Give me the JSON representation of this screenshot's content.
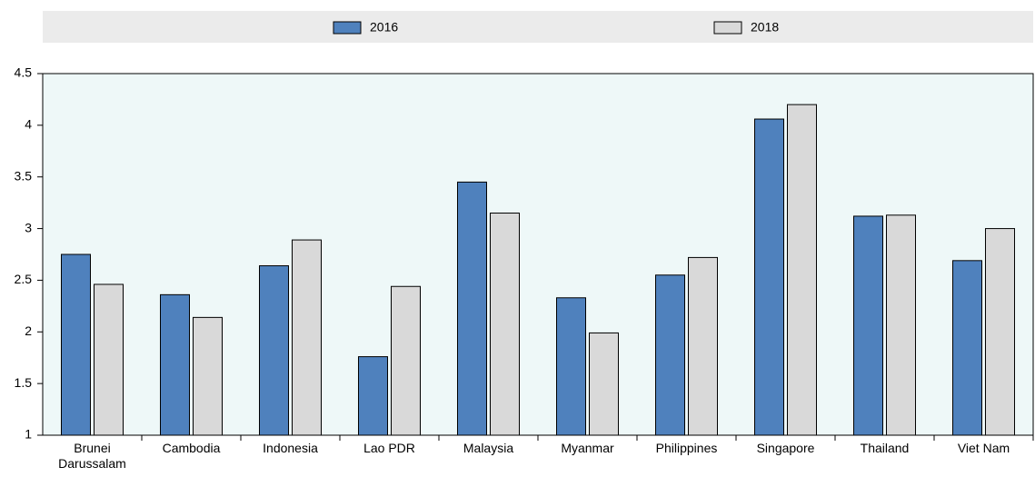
{
  "chart_data": {
    "type": "bar",
    "categories": [
      "Brunei Darussalam",
      "Cambodia",
      "Indonesia",
      "Lao PDR",
      "Malaysia",
      "Myanmar",
      "Philippines",
      "Singapore",
      "Thailand",
      "Viet Nam"
    ],
    "series": [
      {
        "name": "2016",
        "color": "#4f81bd",
        "values": [
          2.75,
          2.36,
          2.64,
          1.76,
          3.45,
          2.33,
          2.55,
          4.06,
          3.12,
          2.69
        ]
      },
      {
        "name": "2018",
        "color": "#d9d9d9",
        "values": [
          2.46,
          2.14,
          2.89,
          2.44,
          3.15,
          1.99,
          2.72,
          4.2,
          3.13,
          3.0
        ]
      }
    ],
    "ylim": [
      1,
      4.5
    ],
    "yticks": [
      1,
      1.5,
      2,
      2.5,
      3,
      3.5,
      4,
      4.5
    ],
    "grid": false,
    "legend": "top"
  }
}
